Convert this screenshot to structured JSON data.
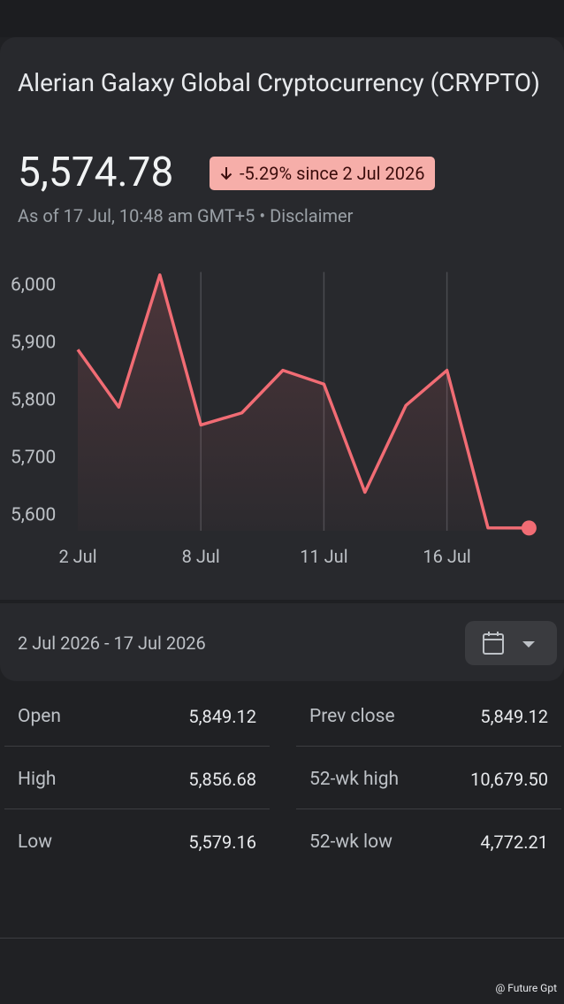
{
  "header": {
    "title": "Alerian Galaxy Global Cryptocurrency (CRYPTO)",
    "price": "5,574.78",
    "change": "-5.29% since 2 Jul 2026",
    "as_of": "As of 17 Jul, 10:48 am GMT+5",
    "disclaimer": "Disclaimer"
  },
  "chart_data": {
    "type": "line",
    "categories": [
      "2 Jul",
      null,
      null,
      "8 Jul",
      null,
      null,
      "11 Jul",
      null,
      null,
      "16 Jul",
      null,
      null
    ],
    "values": [
      5885,
      5785,
      6015,
      5754,
      5775,
      5849,
      5825,
      5637,
      5788,
      5849,
      5575,
      5574.78
    ],
    "color": "#f16c74",
    "ylim": [
      5570,
      6020
    ],
    "yticks": [
      {
        "value": 5600,
        "label": "5,600"
      },
      {
        "value": 5700,
        "label": "5,700"
      },
      {
        "value": 5800,
        "label": "5,800"
      },
      {
        "value": 5900,
        "label": "5,900"
      },
      {
        "value": 6000,
        "label": "6,000"
      }
    ],
    "grid": true
  },
  "range": {
    "label": "2 Jul 2026 - 17 Jul 2026"
  },
  "stats": [
    {
      "label": "Open",
      "value": "5,849.12"
    },
    {
      "label": "Prev close",
      "value": "5,849.12"
    },
    {
      "label": "High",
      "value": "5,856.68"
    },
    {
      "label": "52-wk high",
      "value": "10,679.50"
    },
    {
      "label": "Low",
      "value": "5,579.16"
    },
    {
      "label": "52-wk low",
      "value": "4,772.21"
    }
  ],
  "watermark": "@ Future Gpt"
}
